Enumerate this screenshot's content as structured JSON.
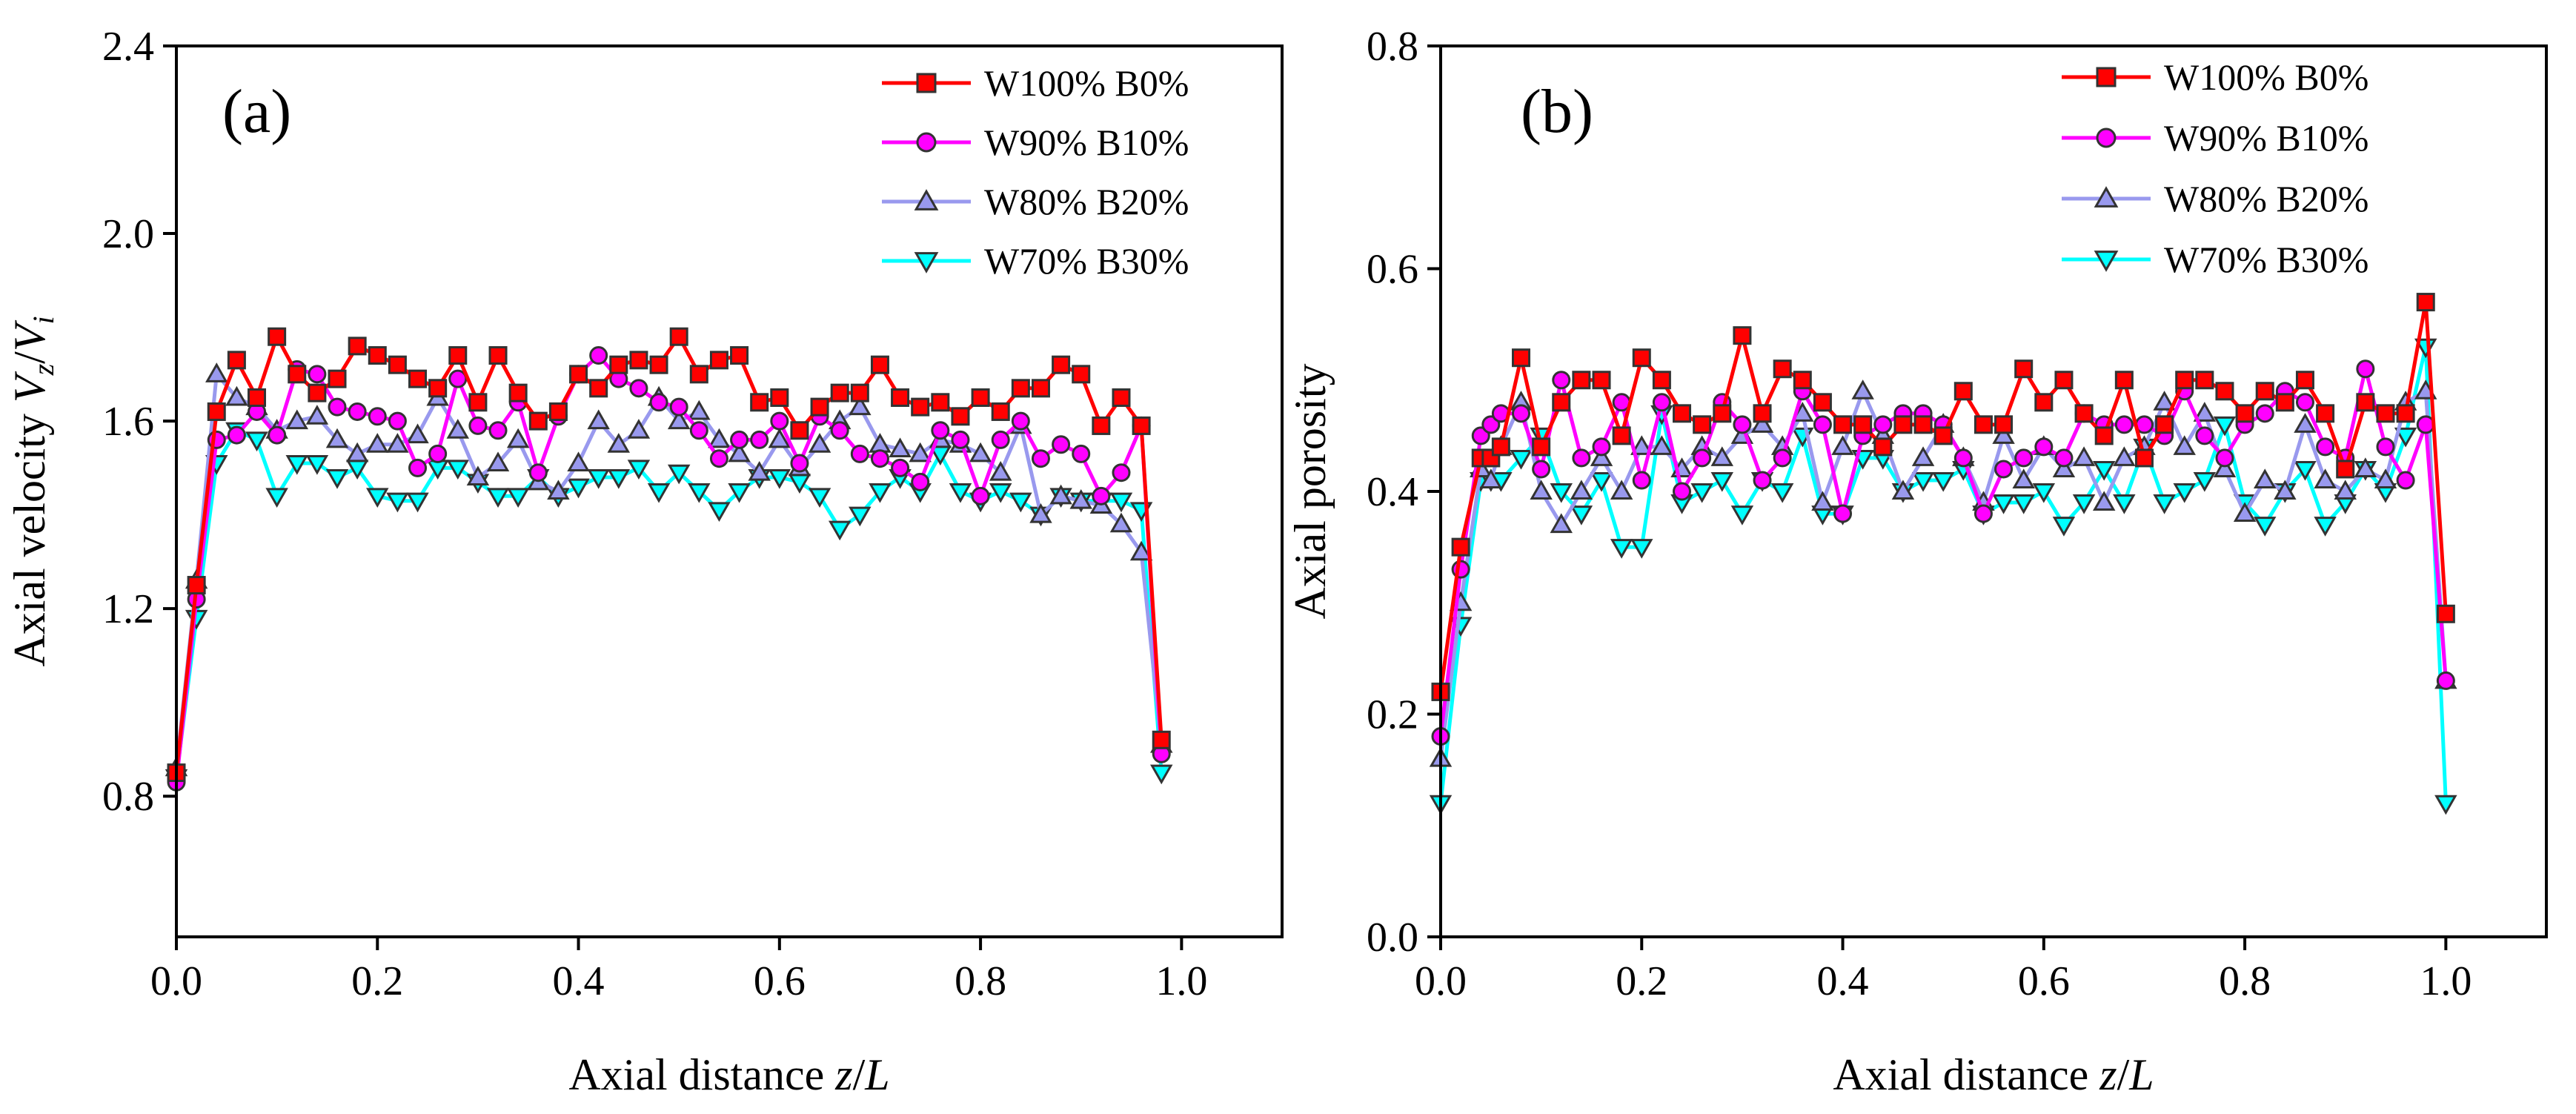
{
  "chart_data": [
    {
      "type": "line",
      "panel_label": "(a)",
      "xlabel": "Axial distance z/L",
      "xlabel_parts": [
        "Axial distance ",
        "z",
        "/",
        "L"
      ],
      "ylabel": "Axial velocity Vz/Vi",
      "ylabel_parts": [
        "Axial velocity ",
        "V",
        "z",
        "/",
        "V",
        "i"
      ],
      "xlim": [
        0,
        1.1
      ],
      "ylim": [
        0.5,
        2.4
      ],
      "xticks": [
        0.0,
        0.2,
        0.4,
        0.6,
        0.8,
        1.0
      ],
      "yticks": [
        0.8,
        1.2,
        1.6,
        2.0,
        2.4
      ],
      "xtick_labels": [
        "0.0",
        "0.2",
        "0.4",
        "0.6",
        "0.8",
        "1.0"
      ],
      "ytick_labels": [
        "0.8",
        "1.2",
        "1.6",
        "2.0",
        "2.4"
      ],
      "legend_position": "top-right",
      "x": [
        0.0,
        0.02,
        0.04,
        0.06,
        0.08,
        0.1,
        0.12,
        0.14,
        0.16,
        0.18,
        0.2,
        0.22,
        0.24,
        0.26,
        0.28,
        0.3,
        0.32,
        0.34,
        0.36,
        0.38,
        0.4,
        0.42,
        0.44,
        0.46,
        0.48,
        0.5,
        0.52,
        0.54,
        0.56,
        0.58,
        0.6,
        0.62,
        0.64,
        0.66,
        0.68,
        0.7,
        0.72,
        0.74,
        0.76,
        0.78,
        0.8,
        0.82,
        0.84,
        0.86,
        0.88,
        0.9,
        0.92,
        0.94,
        0.96,
        0.98
      ],
      "series": [
        {
          "name": "W100% B0%",
          "color": "#ff0000",
          "marker": "square",
          "values": [
            0.85,
            1.25,
            1.62,
            1.73,
            1.65,
            1.78,
            1.7,
            1.66,
            1.69,
            1.76,
            1.74,
            1.72,
            1.69,
            1.67,
            1.74,
            1.64,
            1.74,
            1.66,
            1.6,
            1.62,
            1.7,
            1.67,
            1.72,
            1.73,
            1.72,
            1.78,
            1.7,
            1.73,
            1.74,
            1.64,
            1.65,
            1.58,
            1.63,
            1.66,
            1.66,
            1.72,
            1.65,
            1.63,
            1.64,
            1.61,
            1.65,
            1.62,
            1.67,
            1.67,
            1.72,
            1.7,
            1.59,
            1.65,
            1.59,
            0.92
          ]
        },
        {
          "name": "W90% B10%",
          "color": "#ff00ff",
          "marker": "circle",
          "values": [
            0.83,
            1.22,
            1.56,
            1.57,
            1.62,
            1.57,
            1.71,
            1.7,
            1.63,
            1.62,
            1.61,
            1.6,
            1.5,
            1.53,
            1.69,
            1.59,
            1.58,
            1.64,
            1.49,
            1.61,
            1.7,
            1.74,
            1.69,
            1.67,
            1.64,
            1.63,
            1.58,
            1.52,
            1.56,
            1.56,
            1.6,
            1.51,
            1.61,
            1.58,
            1.53,
            1.52,
            1.5,
            1.47,
            1.58,
            1.56,
            1.44,
            1.56,
            1.6,
            1.52,
            1.55,
            1.53,
            1.44,
            1.49,
            1.59,
            0.89
          ]
        },
        {
          "name": "W80% B20%",
          "color": "#9999ee",
          "marker": "triangle-up",
          "values": [
            0.86,
            1.26,
            1.7,
            1.65,
            1.63,
            1.58,
            1.6,
            1.61,
            1.56,
            1.53,
            1.55,
            1.55,
            1.57,
            1.65,
            1.58,
            1.48,
            1.51,
            1.56,
            1.47,
            1.45,
            1.51,
            1.6,
            1.55,
            1.58,
            1.65,
            1.6,
            1.62,
            1.56,
            1.53,
            1.49,
            1.56,
            1.5,
            1.55,
            1.6,
            1.63,
            1.55,
            1.54,
            1.53,
            1.56,
            1.55,
            1.53,
            1.49,
            1.59,
            1.4,
            1.44,
            1.43,
            1.42,
            1.38,
            1.32,
            0.91
          ]
        },
        {
          "name": "W70% B30%",
          "color": "#00ffff",
          "marker": "triangle-down",
          "values": [
            0.84,
            1.18,
            1.51,
            1.58,
            1.56,
            1.44,
            1.51,
            1.51,
            1.48,
            1.5,
            1.44,
            1.43,
            1.43,
            1.5,
            1.5,
            1.47,
            1.44,
            1.44,
            1.48,
            1.44,
            1.46,
            1.48,
            1.48,
            1.5,
            1.45,
            1.49,
            1.45,
            1.41,
            1.45,
            1.48,
            1.48,
            1.47,
            1.44,
            1.37,
            1.4,
            1.45,
            1.48,
            1.45,
            1.53,
            1.45,
            1.43,
            1.45,
            1.43,
            1.4,
            1.44,
            1.43,
            1.43,
            1.43,
            1.41,
            0.85
          ]
        }
      ]
    },
    {
      "type": "line",
      "panel_label": "(b)",
      "xlabel": "Axial distance z/L",
      "xlabel_parts": [
        "Axial distance ",
        "z",
        "/",
        "L"
      ],
      "ylabel": "Axial porosity",
      "xlim": [
        0,
        1.1
      ],
      "ylim": [
        0,
        0.8
      ],
      "xticks": [
        0.0,
        0.2,
        0.4,
        0.6,
        0.8,
        1.0
      ],
      "yticks": [
        0.0,
        0.2,
        0.4,
        0.6,
        0.8
      ],
      "xtick_labels": [
        "0.0",
        "0.2",
        "0.4",
        "0.6",
        "0.8",
        "1.0"
      ],
      "ytick_labels": [
        "0.0",
        "0.2",
        "0.4",
        "0.6",
        "0.8"
      ],
      "legend_position": "top-right",
      "x": [
        0.0,
        0.02,
        0.04,
        0.05,
        0.06,
        0.08,
        0.1,
        0.12,
        0.14,
        0.16,
        0.18,
        0.2,
        0.22,
        0.24,
        0.26,
        0.28,
        0.3,
        0.32,
        0.34,
        0.36,
        0.38,
        0.4,
        0.42,
        0.44,
        0.46,
        0.48,
        0.5,
        0.52,
        0.54,
        0.56,
        0.58,
        0.6,
        0.62,
        0.64,
        0.66,
        0.68,
        0.7,
        0.72,
        0.74,
        0.76,
        0.78,
        0.8,
        0.82,
        0.84,
        0.86,
        0.88,
        0.9,
        0.92,
        0.94,
        0.96,
        0.98,
        1.0
      ],
      "series": [
        {
          "name": "W100% B0%",
          "color": "#ff0000",
          "marker": "square",
          "values": [
            0.22,
            0.35,
            0.43,
            0.43,
            0.44,
            0.52,
            0.44,
            0.48,
            0.5,
            0.5,
            0.45,
            0.52,
            0.5,
            0.47,
            0.46,
            0.47,
            0.54,
            0.47,
            0.51,
            0.5,
            0.48,
            0.46,
            0.46,
            0.44,
            0.46,
            0.46,
            0.45,
            0.49,
            0.46,
            0.46,
            0.51,
            0.48,
            0.5,
            0.47,
            0.45,
            0.5,
            0.43,
            0.46,
            0.5,
            0.5,
            0.49,
            0.47,
            0.49,
            0.48,
            0.5,
            0.47,
            0.42,
            0.48,
            0.47,
            0.47,
            0.57,
            0.29
          ]
        },
        {
          "name": "W90% B10%",
          "color": "#ff00ff",
          "marker": "circle",
          "values": [
            0.18,
            0.33,
            0.45,
            0.46,
            0.47,
            0.47,
            0.42,
            0.5,
            0.43,
            0.44,
            0.48,
            0.41,
            0.48,
            0.4,
            0.43,
            0.48,
            0.46,
            0.41,
            0.43,
            0.49,
            0.46,
            0.38,
            0.45,
            0.46,
            0.47,
            0.47,
            0.46,
            0.43,
            0.38,
            0.42,
            0.43,
            0.44,
            0.43,
            0.47,
            0.46,
            0.46,
            0.46,
            0.45,
            0.49,
            0.45,
            0.43,
            0.46,
            0.47,
            0.49,
            0.48,
            0.44,
            0.43,
            0.51,
            0.44,
            0.41,
            0.46,
            0.23
          ]
        },
        {
          "name": "W80% B20%",
          "color": "#9999ee",
          "marker": "triangle-up",
          "values": [
            0.16,
            0.3,
            0.42,
            0.41,
            0.44,
            0.48,
            0.4,
            0.37,
            0.4,
            0.43,
            0.4,
            0.44,
            0.44,
            0.42,
            0.44,
            0.43,
            0.45,
            0.46,
            0.44,
            0.47,
            0.39,
            0.44,
            0.49,
            0.45,
            0.4,
            0.43,
            0.46,
            0.43,
            0.39,
            0.45,
            0.41,
            0.44,
            0.42,
            0.43,
            0.39,
            0.43,
            0.44,
            0.48,
            0.44,
            0.47,
            0.42,
            0.38,
            0.41,
            0.4,
            0.46,
            0.41,
            0.4,
            0.42,
            0.41,
            0.48,
            0.49,
            0.23
          ]
        },
        {
          "name": "W70% B30%",
          "color": "#00ffff",
          "marker": "triangle-down",
          "values": [
            0.12,
            0.28,
            0.41,
            0.41,
            0.41,
            0.43,
            0.45,
            0.4,
            0.38,
            0.41,
            0.35,
            0.35,
            0.47,
            0.39,
            0.4,
            0.41,
            0.38,
            0.41,
            0.4,
            0.45,
            0.38,
            0.38,
            0.43,
            0.43,
            0.4,
            0.41,
            0.41,
            0.42,
            0.38,
            0.39,
            0.39,
            0.4,
            0.37,
            0.39,
            0.42,
            0.39,
            0.44,
            0.39,
            0.4,
            0.41,
            0.46,
            0.39,
            0.37,
            0.4,
            0.42,
            0.37,
            0.39,
            0.42,
            0.4,
            0.45,
            0.53,
            0.12
          ]
        }
      ]
    }
  ]
}
